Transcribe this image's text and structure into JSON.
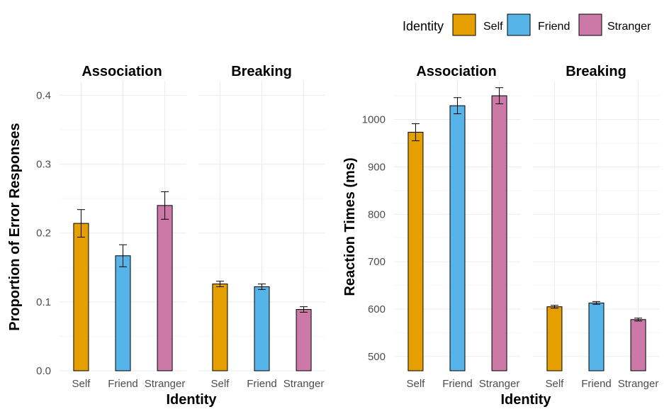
{
  "legend": {
    "title": "Identity",
    "placement": "top-right",
    "items": [
      {
        "label": "Self",
        "color": "#E69F00"
      },
      {
        "label": "Friend",
        "color": "#56B4E9"
      },
      {
        "label": "Stranger",
        "color": "#CC79A7"
      }
    ]
  },
  "chart_data": [
    {
      "type": "bar",
      "xlabel": "Identity",
      "ylabel": "Proportion of Error Responses",
      "ylim": [
        0,
        0.42
      ],
      "yticks": [
        "0.0",
        "0.1",
        "0.2",
        "0.3",
        "0.4"
      ],
      "grid": true,
      "categories": [
        "Self",
        "Friend",
        "Stranger"
      ],
      "facets": [
        {
          "title": "Association",
          "values": [
            0.214,
            0.167,
            0.24
          ],
          "errors": [
            0.02,
            0.016,
            0.02
          ]
        },
        {
          "title": "Breaking",
          "values": [
            0.126,
            0.122,
            0.089
          ],
          "errors": [
            0.004,
            0.004,
            0.004
          ]
        }
      ]
    },
    {
      "type": "bar",
      "xlabel": "Identity",
      "ylabel": "Reaction Times (ms)",
      "ylim": [
        470,
        1080
      ],
      "yticks": [
        "500",
        "600",
        "700",
        "800",
        "900",
        "1000"
      ],
      "grid": true,
      "categories": [
        "Self",
        "Friend",
        "Stranger"
      ],
      "facets": [
        {
          "title": "Association",
          "values": [
            973,
            1029,
            1050
          ],
          "errors": [
            18,
            17,
            17
          ]
        },
        {
          "title": "Breaking",
          "values": [
            605,
            613,
            578
          ],
          "errors": [
            3,
            3,
            3
          ]
        }
      ]
    }
  ]
}
